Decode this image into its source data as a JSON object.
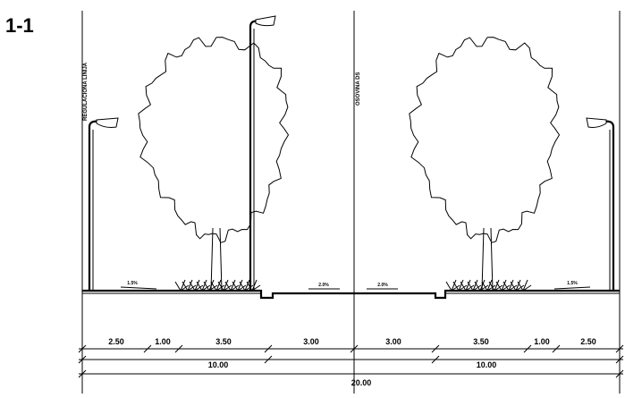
{
  "title": "1-1",
  "labels": {
    "regulation_line": "REGULACIONA LINIJA",
    "axis": "OSOVINA DS"
  },
  "slopes": [
    "1.5%",
    "2.0%",
    "2.0%",
    "1.5%"
  ],
  "dimensions": {
    "segments": [
      "2.50",
      "1.00",
      "3.50",
      "3.00",
      "3.00",
      "3.50",
      "1.00",
      "2.50"
    ],
    "halves": [
      "10.00",
      "10.00"
    ],
    "total": "20.00"
  }
}
